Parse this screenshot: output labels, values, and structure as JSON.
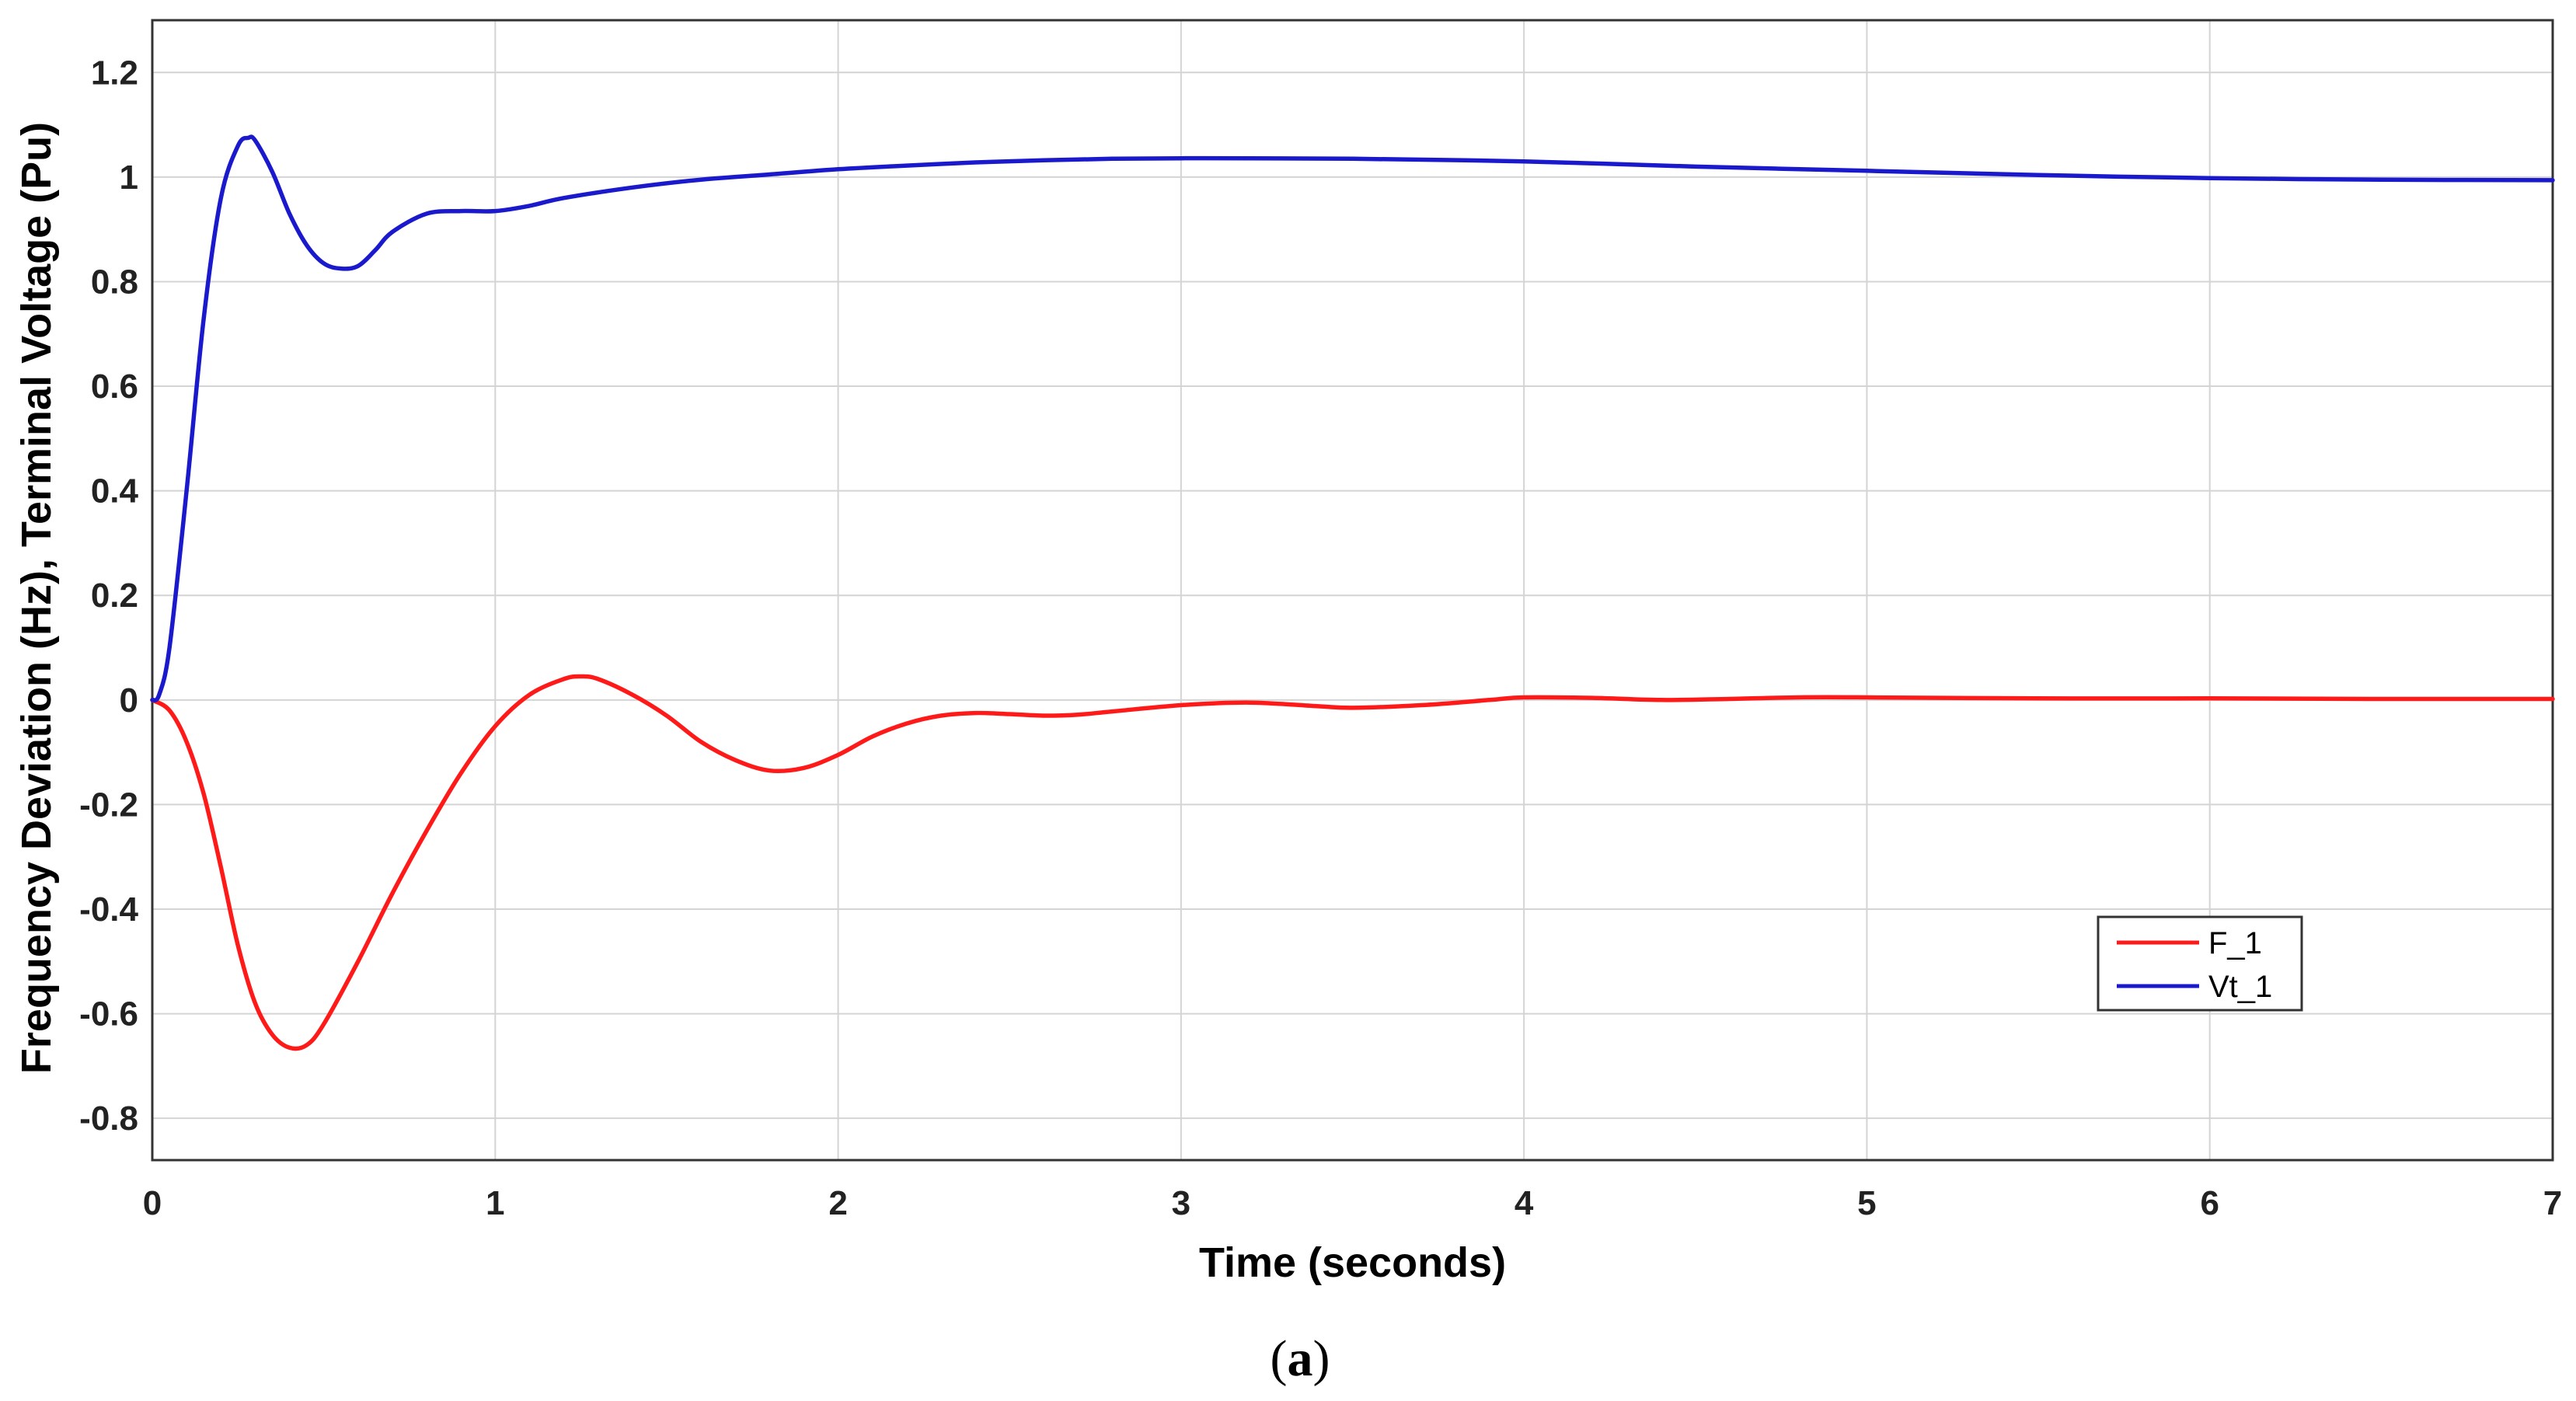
{
  "chart_data": {
    "type": "line",
    "title": "",
    "xlabel": "Time (seconds)",
    "ylabel": "Frequency Deviation (Hz), Terminal Voltage (Pu)",
    "xlim": [
      0,
      7
    ],
    "ylim": [
      -0.88,
      1.3
    ],
    "xticks": [
      "0",
      "1",
      "2",
      "3",
      "4",
      "5",
      "6",
      "7"
    ],
    "yticks": [
      "-0.8",
      "-0.6",
      "-0.4",
      "-0.2",
      "0",
      "0.2",
      "0.4",
      "0.6",
      "0.8",
      "1",
      "1.2"
    ],
    "grid": true,
    "legend_position": "lower-right",
    "series": [
      {
        "name": "F_1",
        "color": "#ff1a1a",
        "x": [
          0,
          0.05,
          0.1,
          0.15,
          0.2,
          0.25,
          0.3,
          0.35,
          0.4,
          0.45,
          0.5,
          0.6,
          0.7,
          0.8,
          0.9,
          1.0,
          1.1,
          1.2,
          1.25,
          1.3,
          1.4,
          1.5,
          1.6,
          1.7,
          1.8,
          1.9,
          2.0,
          2.1,
          2.2,
          2.3,
          2.4,
          2.5,
          2.6,
          2.7,
          2.8,
          3.0,
          3.2,
          3.4,
          3.5,
          3.7,
          3.9,
          4.0,
          4.2,
          4.4,
          4.6,
          4.8,
          5.0,
          5.5,
          6.0,
          6.5,
          7.0
        ],
        "y": [
          0,
          -0.02,
          -0.08,
          -0.18,
          -0.32,
          -0.47,
          -0.58,
          -0.64,
          -0.665,
          -0.66,
          -0.62,
          -0.5,
          -0.37,
          -0.25,
          -0.14,
          -0.05,
          0.01,
          0.04,
          0.045,
          0.04,
          0.01,
          -0.03,
          -0.08,
          -0.115,
          -0.135,
          -0.13,
          -0.105,
          -0.07,
          -0.045,
          -0.03,
          -0.025,
          -0.027,
          -0.03,
          -0.028,
          -0.022,
          -0.01,
          -0.005,
          -0.012,
          -0.015,
          -0.01,
          0,
          0.005,
          0.004,
          0,
          0.002,
          0.005,
          0.005,
          0.003,
          0.003,
          0.002,
          0.002
        ]
      },
      {
        "name": "Vt_1",
        "color": "#1a1acc",
        "x": [
          0,
          0.02,
          0.05,
          0.1,
          0.15,
          0.2,
          0.25,
          0.28,
          0.3,
          0.35,
          0.4,
          0.45,
          0.5,
          0.55,
          0.6,
          0.65,
          0.7,
          0.8,
          0.9,
          1.0,
          1.1,
          1.2,
          1.4,
          1.6,
          1.8,
          2.0,
          2.2,
          2.4,
          2.6,
          2.8,
          3.0,
          3.2,
          3.5,
          4.0,
          4.5,
          5.0,
          5.5,
          6.0,
          6.5,
          7.0
        ],
        "y": [
          0,
          0.01,
          0.1,
          0.4,
          0.73,
          0.96,
          1.06,
          1.075,
          1.07,
          1.01,
          0.93,
          0.87,
          0.835,
          0.825,
          0.83,
          0.86,
          0.895,
          0.93,
          0.935,
          0.935,
          0.945,
          0.96,
          0.98,
          0.995,
          1.005,
          1.015,
          1.022,
          1.028,
          1.032,
          1.035,
          1.036,
          1.036,
          1.035,
          1.03,
          1.02,
          1.012,
          1.004,
          0.998,
          0.995,
          0.994
        ]
      }
    ],
    "caption": {
      "open": "(",
      "letter": "a",
      "close": ")"
    }
  }
}
